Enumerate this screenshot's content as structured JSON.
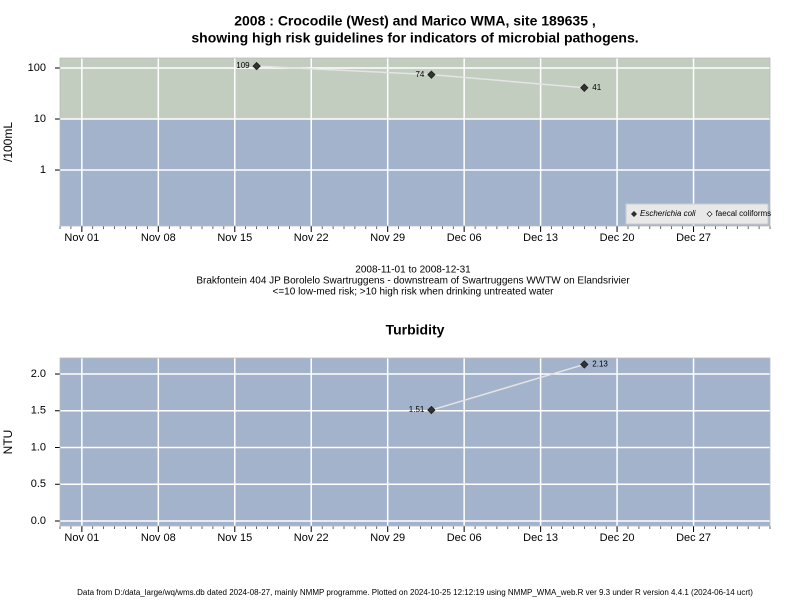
{
  "chart_data": [
    {
      "type": "line",
      "title": [
        "2008 : Crocodile (West) and Marico WMA, site 189635 ,",
        "showing high risk guidelines for indicators of microbial pathogens."
      ],
      "ylabel": "/100mL",
      "notes": [
        "2008-11-01 to 2008-12-31",
        "Brakfontein 404 JP Borolelo Swartruggens - downstream of Swartruggens WWTW on Elandsrivier",
        "<=10 low-med risk; >10 high risk when drinking untreated water"
      ],
      "x": [
        "2008-11-17",
        "2008-12-03",
        "2008-12-17"
      ],
      "series": [
        {
          "name": "Escherichia coli",
          "color": "#333333",
          "values": [
            109,
            74,
            41
          ]
        },
        {
          "name": "faecal coliforms",
          "color": "#ffffff",
          "values": [
            null,
            null,
            null
          ]
        }
      ],
      "xlim": [
        "2008-10-30",
        "2009-01-03"
      ],
      "xticks": [
        {
          "value": "2008-11-01",
          "label": "Nov 01"
        },
        {
          "value": "2008-11-08",
          "label": "Nov 08"
        },
        {
          "value": "2008-11-15",
          "label": "Nov 15"
        },
        {
          "value": "2008-11-22",
          "label": "Nov 22"
        },
        {
          "value": "2008-11-29",
          "label": "Nov 29"
        },
        {
          "value": "2008-12-06",
          "label": "Dec 06"
        },
        {
          "value": "2008-12-13",
          "label": "Dec 13"
        },
        {
          "value": "2008-12-20",
          "label": "Dec 20"
        },
        {
          "value": "2008-12-27",
          "label": "Dec 27"
        }
      ],
      "ylim": [
        0.08,
        157
      ],
      "yticks": [
        1,
        10,
        100
      ],
      "log_scale": true,
      "grid": true,
      "background": "#a3b3cb",
      "bands": [
        {
          "from": 10,
          "color": "#c2cdc0"
        }
      ],
      "legend": "bottom-right"
    },
    {
      "type": "line",
      "title": "Turbidity",
      "ylabel": "NTU",
      "x": [
        "2008-12-03",
        "2008-12-17"
      ],
      "series": [
        {
          "color": "#333333",
          "values": [
            1.51,
            2.13
          ]
        }
      ],
      "xlim": [
        "2008-10-30",
        "2009-01-03"
      ],
      "xticks": [
        {
          "value": "2008-11-01",
          "label": "Nov 01"
        },
        {
          "value": "2008-11-08",
          "label": "Nov 08"
        },
        {
          "value": "2008-11-15",
          "label": "Nov 15"
        },
        {
          "value": "2008-11-22",
          "label": "Nov 22"
        },
        {
          "value": "2008-11-29",
          "label": "Nov 29"
        },
        {
          "value": "2008-12-06",
          "label": "Dec 06"
        },
        {
          "value": "2008-12-13",
          "label": "Dec 13"
        },
        {
          "value": "2008-12-20",
          "label": "Dec 20"
        },
        {
          "value": "2008-12-27",
          "label": "Dec 27"
        }
      ],
      "ylim": [
        -0.068,
        2.218
      ],
      "yticks": [
        {
          "value": 0,
          "label": "0.0"
        },
        0.5,
        {
          "value": 1,
          "label": "1.0"
        },
        1.5,
        {
          "value": 2,
          "label": "2.0"
        }
      ],
      "log_scale": false,
      "grid": true,
      "background": "#a3b3cb"
    }
  ],
  "footer": "Data from D:/data_large/wq/wms.db dated 2024-08-27, mainly NMMP programme. Plotted on 2024-10-25 12:12:19 using NMMP_WMA_web.R ver 9.3 under R version 4.4.1 (2024-06-14 ucrt)"
}
